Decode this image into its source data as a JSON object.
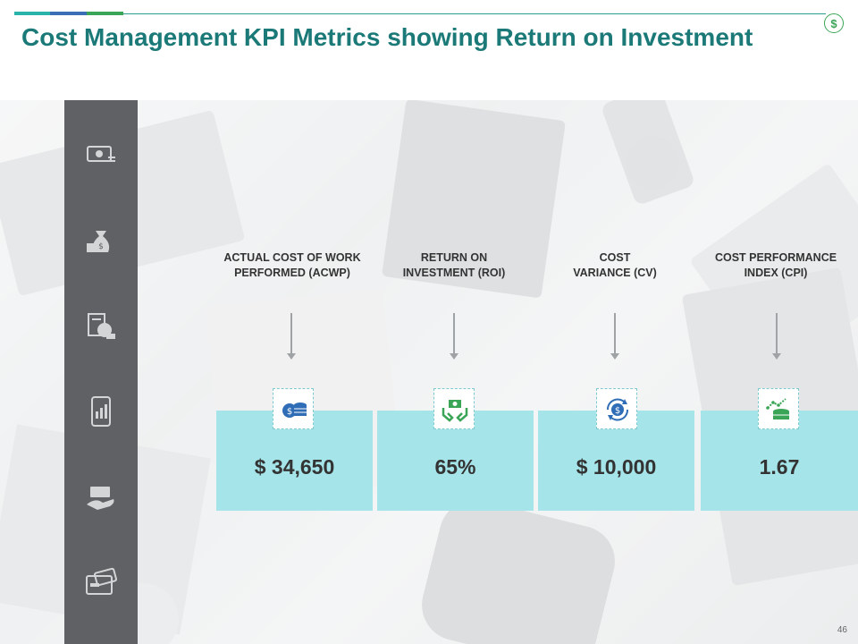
{
  "header": {
    "title": "Cost Management KPI Metrics showing Return on Investment",
    "accent_colors": [
      "#2ab3a8",
      "#3a6fb5",
      "#3aa556"
    ],
    "logo_icon": "dollar-circle-icon",
    "logo_text": "$"
  },
  "sidebar": {
    "color": "#5f6164",
    "icons": [
      "money-bill-icon",
      "money-bag-icon",
      "invoice-coins-icon",
      "mobile-chart-icon",
      "hand-money-icon",
      "credit-card-icon"
    ]
  },
  "kpis": [
    {
      "label_line1": "ACTUAL  COST OF WORK",
      "label_line2": "PERFORMED (ACWP)",
      "value": "$ 34,650",
      "icon": "coins-stack-icon",
      "icon_color": "#2f6db6"
    },
    {
      "label_line1": "RETURN ON",
      "label_line2": "INVESTMENT (ROI)",
      "value": "65%",
      "icon": "hands-money-icon",
      "icon_color": "#3aa556"
    },
    {
      "label_line1": "COST",
      "label_line2": "VARIANCE  (CV)",
      "value": "$ 10,000",
      "icon": "dollar-cycle-icon",
      "icon_color": "#2f6db6"
    },
    {
      "label_line1": "COST PERFORMANCE",
      "label_line2": "INDEX (CPI)",
      "value": "1.67",
      "icon": "coins-growth-icon",
      "icon_color": "#3aa556"
    }
  ],
  "card_color": "#a5e4e9",
  "footer": {
    "page_number": "46"
  }
}
